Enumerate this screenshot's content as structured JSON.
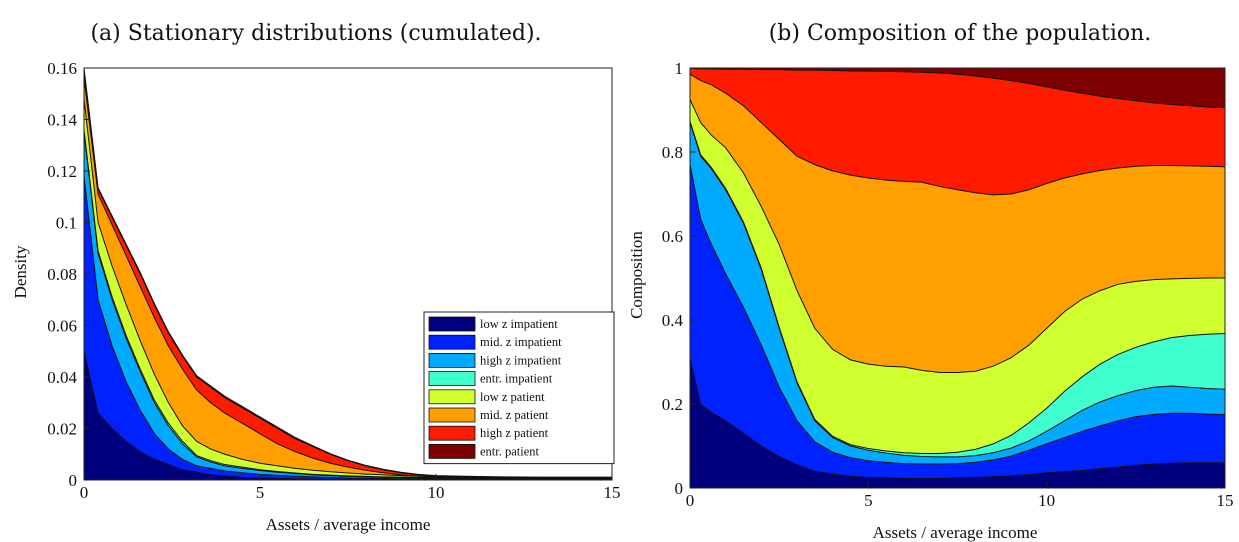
{
  "chart_data": [
    {
      "type": "area",
      "title": "(a) Stationary distributions (cumulated).",
      "xlabel": "Assets / average income",
      "ylabel": "Density",
      "xlim": [
        0,
        15
      ],
      "ylim": [
        0,
        0.16
      ],
      "xticks": [
        "0",
        "5",
        "10",
        "15"
      ],
      "yticks": [
        "0",
        "0.02",
        "0.04",
        "0.06",
        "0.08",
        "0.1",
        "0.12",
        "0.14",
        "0.16"
      ],
      "grid": false,
      "legend_position": "bottom-right",
      "x": [
        0,
        0.4,
        0.8,
        1.2,
        1.6,
        2,
        2.4,
        2.8,
        3.2,
        3.6,
        4,
        4.5,
        5,
        5.5,
        6,
        6.5,
        7,
        7.5,
        8,
        8.5,
        9,
        9.5,
        10,
        11,
        12,
        13,
        14,
        15
      ],
      "cumulative_series": [
        {
          "name": "low z impatient",
          "color": "#00007f",
          "values": [
            0.05,
            0.026,
            0.02,
            0.015,
            0.011,
            0.008,
            0.006,
            0.004,
            0.003,
            0.002,
            0.0015,
            0.001,
            0.0008,
            0.0006,
            0.0005,
            0.0004,
            0.0003,
            0.0003,
            0.0002,
            0.0002,
            0.0002,
            0.0001,
            0.0001,
            0.0001,
            0.0001,
            0.0001,
            0.0001,
            0.0001
          ]
        },
        {
          "name": "mid. z impatient",
          "color": "#0022ff",
          "values": [
            0.118,
            0.07,
            0.052,
            0.038,
            0.027,
            0.018,
            0.012,
            0.008,
            0.0055,
            0.0045,
            0.0035,
            0.0028,
            0.0022,
            0.0018,
            0.0015,
            0.0012,
            0.001,
            0.0008,
            0.0007,
            0.0006,
            0.0005,
            0.0004,
            0.0004,
            0.0003,
            0.0003,
            0.0003,
            0.0003,
            0.0003
          ]
        },
        {
          "name": "high z impatient",
          "color": "#00aaff",
          "values": [
            0.135,
            0.088,
            0.07,
            0.055,
            0.042,
            0.03,
            0.021,
            0.014,
            0.009,
            0.007,
            0.0055,
            0.0045,
            0.0037,
            0.003,
            0.0025,
            0.002,
            0.0017,
            0.0014,
            0.0012,
            0.001,
            0.0009,
            0.0008,
            0.0007,
            0.0006,
            0.0006,
            0.0005,
            0.0005,
            0.0005
          ]
        },
        {
          "name": "entr. impatient",
          "color": "#3fffcf",
          "values": [
            0.136,
            0.089,
            0.071,
            0.056,
            0.043,
            0.031,
            0.022,
            0.015,
            0.0095,
            0.0075,
            0.006,
            0.005,
            0.004,
            0.0033,
            0.0027,
            0.0022,
            0.0019,
            0.0016,
            0.0014,
            0.0012,
            0.0011,
            0.001,
            0.0009,
            0.0008,
            0.0007,
            0.0007,
            0.0007,
            0.0007
          ]
        },
        {
          "name": "low z patient",
          "color": "#cfff2f",
          "values": [
            0.148,
            0.1,
            0.083,
            0.068,
            0.054,
            0.041,
            0.03,
            0.021,
            0.015,
            0.012,
            0.01,
            0.008,
            0.0065,
            0.0055,
            0.0045,
            0.0038,
            0.0032,
            0.0027,
            0.0023,
            0.002,
            0.0017,
            0.0015,
            0.0013,
            0.0011,
            0.001,
            0.0009,
            0.0009,
            0.0008
          ]
        },
        {
          "name": "mid. z patient",
          "color": "#ffa000",
          "values": [
            0.156,
            0.111,
            0.099,
            0.087,
            0.075,
            0.063,
            0.052,
            0.043,
            0.035,
            0.03,
            0.026,
            0.022,
            0.018,
            0.014,
            0.011,
            0.0085,
            0.0065,
            0.005,
            0.0038,
            0.0028,
            0.002,
            0.0015,
            0.0012,
            0.001,
            0.0009,
            0.0008,
            0.0008,
            0.0008
          ]
        },
        {
          "name": "high z patient",
          "color": "#ff1a00",
          "values": [
            0.159,
            0.113,
            0.102,
            0.091,
            0.08,
            0.068,
            0.057,
            0.048,
            0.04,
            0.036,
            0.032,
            0.028,
            0.024,
            0.02,
            0.016,
            0.013,
            0.01,
            0.0075,
            0.0055,
            0.004,
            0.0028,
            0.002,
            0.0015,
            0.0012,
            0.001,
            0.0009,
            0.0009,
            0.0009
          ]
        },
        {
          "name": "entr. patient",
          "color": "#7f0000",
          "values": [
            0.16,
            0.1135,
            0.1025,
            0.0915,
            0.0805,
            0.0685,
            0.0575,
            0.0485,
            0.0405,
            0.0365,
            0.0325,
            0.0285,
            0.0245,
            0.0205,
            0.0165,
            0.0133,
            0.0102,
            0.0077,
            0.0057,
            0.0042,
            0.003,
            0.0022,
            0.0017,
            0.0014,
            0.0012,
            0.0011,
            0.0011,
            0.0011
          ]
        }
      ]
    },
    {
      "type": "area",
      "title": "(b) Composition of the population.",
      "xlabel": "Assets / average income",
      "ylabel": "Composition",
      "xlim": [
        0,
        15
      ],
      "ylim": [
        0,
        1
      ],
      "xticks": [
        "0",
        "5",
        "10",
        "15"
      ],
      "yticks": [
        "0",
        "0.2",
        "0.4",
        "0.6",
        "0.8",
        "1"
      ],
      "grid": false,
      "x": [
        0,
        0.3,
        0.6,
        1,
        1.5,
        2,
        2.5,
        3,
        3.5,
        4,
        4.5,
        5,
        5.5,
        6,
        6.5,
        7,
        7.5,
        8,
        8.5,
        9,
        9.5,
        10,
        10.5,
        11,
        11.5,
        12,
        12.5,
        13,
        13.5,
        14,
        14.5,
        15
      ],
      "cumulative_series": [
        {
          "name": "low z impatient",
          "color": "#00007f",
          "values": [
            0.31,
            0.2,
            0.18,
            0.16,
            0.13,
            0.1,
            0.075,
            0.055,
            0.04,
            0.033,
            0.028,
            0.025,
            0.024,
            0.023,
            0.023,
            0.023,
            0.024,
            0.025,
            0.027,
            0.029,
            0.032,
            0.036,
            0.039,
            0.042,
            0.046,
            0.05,
            0.054,
            0.057,
            0.059,
            0.06,
            0.06,
            0.06
          ]
        },
        {
          "name": "mid. z impatient",
          "color": "#0022ff",
          "values": [
            0.77,
            0.64,
            0.58,
            0.51,
            0.43,
            0.34,
            0.24,
            0.16,
            0.11,
            0.085,
            0.072,
            0.065,
            0.061,
            0.058,
            0.057,
            0.057,
            0.058,
            0.061,
            0.067,
            0.076,
            0.09,
            0.105,
            0.12,
            0.135,
            0.148,
            0.16,
            0.17,
            0.175,
            0.178,
            0.178,
            0.176,
            0.175
          ]
        },
        {
          "name": "high z impatient",
          "color": "#00aaff",
          "values": [
            0.87,
            0.79,
            0.76,
            0.71,
            0.63,
            0.52,
            0.38,
            0.25,
            0.16,
            0.12,
            0.1,
            0.09,
            0.083,
            0.078,
            0.075,
            0.074,
            0.074,
            0.077,
            0.084,
            0.095,
            0.112,
            0.135,
            0.16,
            0.185,
            0.205,
            0.22,
            0.232,
            0.24,
            0.243,
            0.24,
            0.237,
            0.235
          ]
        },
        {
          "name": "entr. impatient",
          "color": "#3fffcf",
          "values": [
            0.873,
            0.793,
            0.763,
            0.713,
            0.633,
            0.523,
            0.383,
            0.253,
            0.163,
            0.123,
            0.103,
            0.094,
            0.088,
            0.084,
            0.082,
            0.082,
            0.085,
            0.092,
            0.105,
            0.125,
            0.155,
            0.19,
            0.23,
            0.265,
            0.295,
            0.318,
            0.335,
            0.348,
            0.358,
            0.363,
            0.366,
            0.368
          ]
        },
        {
          "name": "low z patient",
          "color": "#cfff2f",
          "values": [
            0.925,
            0.87,
            0.84,
            0.81,
            0.75,
            0.67,
            0.58,
            0.47,
            0.38,
            0.33,
            0.305,
            0.295,
            0.29,
            0.288,
            0.28,
            0.275,
            0.275,
            0.278,
            0.29,
            0.31,
            0.34,
            0.38,
            0.42,
            0.45,
            0.47,
            0.485,
            0.492,
            0.496,
            0.498,
            0.499,
            0.5,
            0.5
          ]
        },
        {
          "name": "mid. z patient",
          "color": "#ffa000",
          "values": [
            0.985,
            0.97,
            0.96,
            0.94,
            0.91,
            0.87,
            0.83,
            0.79,
            0.77,
            0.755,
            0.745,
            0.738,
            0.733,
            0.73,
            0.728,
            0.718,
            0.71,
            0.703,
            0.698,
            0.7,
            0.71,
            0.725,
            0.738,
            0.748,
            0.756,
            0.762,
            0.766,
            0.768,
            0.768,
            0.767,
            0.766,
            0.765
          ]
        },
        {
          "name": "high z patient",
          "color": "#ff1a00",
          "values": [
            0.999,
            0.998,
            0.998,
            0.997,
            0.997,
            0.996,
            0.996,
            0.995,
            0.995,
            0.994,
            0.993,
            0.993,
            0.992,
            0.991,
            0.99,
            0.988,
            0.985,
            0.981,
            0.976,
            0.97,
            0.963,
            0.955,
            0.947,
            0.94,
            0.933,
            0.927,
            0.922,
            0.917,
            0.913,
            0.91,
            0.907,
            0.905
          ]
        },
        {
          "name": "entr. patient",
          "color": "#7f0000",
          "values": [
            1,
            1,
            1,
            1,
            1,
            1,
            1,
            1,
            1,
            1,
            1,
            1,
            1,
            1,
            1,
            1,
            1,
            1,
            1,
            1,
            1,
            1,
            1,
            1,
            1,
            1,
            1,
            1,
            1,
            1,
            1,
            1
          ]
        }
      ]
    }
  ]
}
